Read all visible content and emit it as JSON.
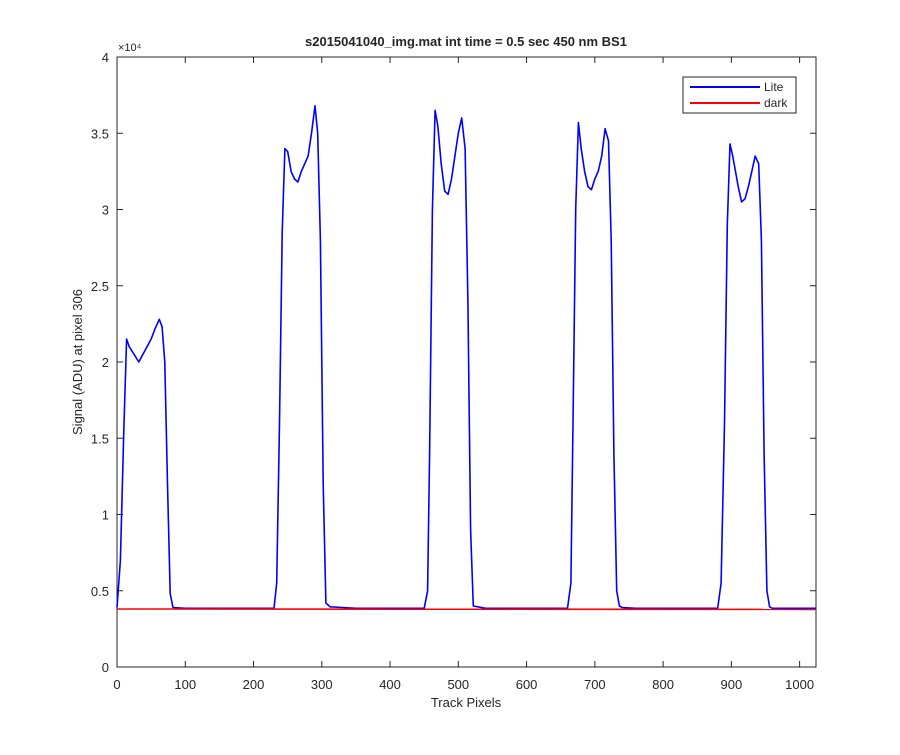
{
  "chart_data": {
    "type": "line",
    "title": "s2015041040_img.mat int time = 0.5 sec  450 nm BS1",
    "xlabel": "Track Pixels",
    "ylabel": "Signal (ADU) at pixel 306",
    "xlim": [
      0,
      1024
    ],
    "ylim": [
      0,
      40000
    ],
    "y_multiplier_label": "×10⁴",
    "x_ticks": [
      0,
      100,
      200,
      300,
      400,
      500,
      600,
      700,
      800,
      900,
      1000
    ],
    "x_tick_labels": [
      "0",
      "100",
      "200",
      "300",
      "400",
      "500",
      "600",
      "700",
      "800",
      "900",
      "1000"
    ],
    "y_ticks": [
      0,
      5000,
      10000,
      15000,
      20000,
      25000,
      30000,
      35000,
      40000
    ],
    "y_tick_labels": [
      "0",
      "0.5",
      "1",
      "1.5",
      "2",
      "2.5",
      "3",
      "3.5",
      "4"
    ],
    "grid": false,
    "legend_position": "top-right",
    "series": [
      {
        "name": "Lite",
        "color": "#0000ff",
        "x": [
          0,
          5,
          10,
          14,
          18,
          25,
          32,
          38,
          44,
          50,
          56,
          62,
          66,
          70,
          74,
          78,
          82,
          100,
          150,
          200,
          230,
          234,
          238,
          242,
          246,
          250,
          255,
          260,
          265,
          270,
          275,
          280,
          285,
          290,
          294,
          298,
          302,
          306,
          312,
          330,
          350,
          400,
          450,
          455,
          458,
          462,
          466,
          470,
          475,
          480,
          485,
          490,
          495,
          500,
          505,
          510,
          514,
          518,
          522,
          540,
          600,
          660,
          665,
          668,
          672,
          676,
          680,
          685,
          690,
          695,
          700,
          705,
          710,
          715,
          720,
          724,
          728,
          732,
          736,
          740,
          760,
          800,
          880,
          885,
          890,
          894,
          898,
          902,
          906,
          910,
          915,
          920,
          925,
          930,
          935,
          940,
          944,
          948,
          952,
          956,
          960,
          980,
          1024
        ],
        "y": [
          3900,
          7000,
          15500,
          21500,
          21000,
          20500,
          20000,
          20500,
          21000,
          21500,
          22200,
          22800,
          22300,
          20000,
          12000,
          4800,
          3900,
          3850,
          3850,
          3850,
          3850,
          5500,
          16000,
          28500,
          34000,
          33800,
          32500,
          32000,
          31800,
          32500,
          33000,
          33500,
          35000,
          36800,
          35000,
          28000,
          12000,
          4200,
          3950,
          3900,
          3850,
          3850,
          3850,
          5000,
          14000,
          30000,
          36500,
          35500,
          33000,
          31200,
          31000,
          32000,
          33500,
          35000,
          36000,
          34000,
          24000,
          9000,
          4000,
          3850,
          3850,
          3850,
          5500,
          16000,
          30000,
          35700,
          34000,
          32500,
          31500,
          31300,
          32000,
          32500,
          33500,
          35300,
          34500,
          28000,
          14000,
          5000,
          4000,
          3900,
          3850,
          3850,
          3850,
          5500,
          16000,
          29000,
          34300,
          33500,
          32500,
          31500,
          30500,
          30700,
          31500,
          32500,
          33500,
          33000,
          28000,
          14000,
          5000,
          3950,
          3850,
          3850,
          3850
        ]
      },
      {
        "name": "dark",
        "color": "#ff0000",
        "x": [
          0,
          1024
        ],
        "y": [
          3800,
          3780
        ]
      }
    ]
  }
}
